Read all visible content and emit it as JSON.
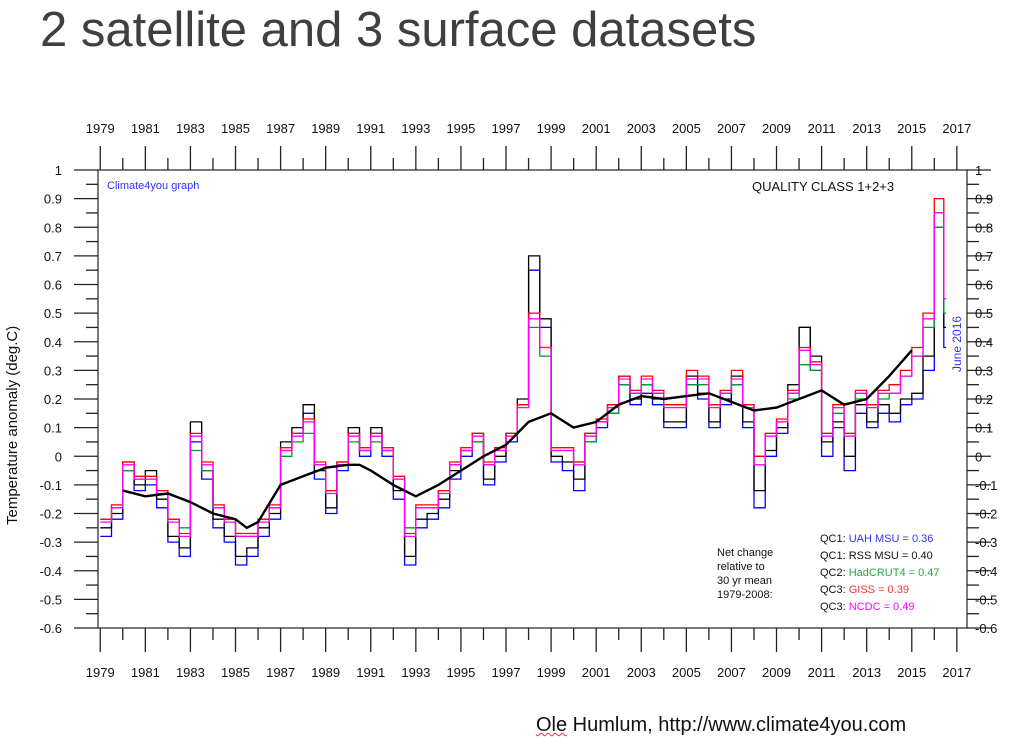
{
  "title": "2 satellite and 3 surface datasets",
  "footer": {
    "author": "Ole",
    "rest": " Humlum, http://www.climate4you.com"
  },
  "chart_data": {
    "type": "line",
    "ylabel": "Temperature anomaly (deg.C)",
    "watermark": "Climate4you graph",
    "panel_title": "QUALITY CLASS 1+2+3",
    "date_note": "June 2016",
    "xlim": [
      1978.9,
      2017.45
    ],
    "ylim": [
      -0.6,
      1.0
    ],
    "x_ticks": [
      1979,
      1981,
      1983,
      1985,
      1987,
      1989,
      1991,
      1993,
      1995,
      1997,
      1999,
      2001,
      2003,
      2005,
      2007,
      2009,
      2011,
      2013,
      2015,
      2017
    ],
    "y_ticks": [
      "-0.6",
      "-0.5",
      "-0.4",
      "-0.3",
      "-0.2",
      "-0.1",
      "0",
      "0.1",
      "0.2",
      "0.3",
      "0.4",
      "0.5",
      "0.6",
      "0.7",
      "0.8",
      "0.9",
      "1"
    ],
    "net_change_note": [
      "Net change",
      "relative to",
      "30 yr mean",
      "1979-2008:"
    ],
    "x": [
      1979,
      1979.5,
      1980,
      1980.5,
      1981,
      1981.5,
      1982,
      1982.5,
      1983,
      1983.5,
      1984,
      1984.5,
      1985,
      1985.5,
      1986,
      1986.5,
      1987,
      1987.5,
      1988,
      1988.5,
      1989,
      1989.5,
      1990,
      1990.5,
      1991,
      1991.5,
      1992,
      1992.5,
      1993,
      1993.5,
      1994,
      1994.5,
      1995,
      1995.5,
      1996,
      1996.5,
      1997,
      1997.5,
      1998,
      1998.5,
      1999,
      1999.5,
      2000,
      2000.5,
      2001,
      2001.5,
      2002,
      2002.5,
      2003,
      2003.5,
      2004,
      2004.5,
      2005,
      2005.5,
      2006,
      2006.5,
      2007,
      2007.5,
      2008,
      2008.5,
      2009,
      2009.5,
      2010,
      2010.5,
      2011,
      2011.5,
      2012,
      2012.5,
      2013,
      2013.5,
      2014,
      2014.5,
      2015,
      2015.5,
      2016,
      2016.42
    ],
    "series": [
      {
        "name": "UAH MSU",
        "class": "QC1",
        "net_change": "0.36",
        "color": "#0000ff",
        "values": [
          -0.28,
          -0.22,
          -0.05,
          -0.12,
          -0.1,
          -0.18,
          -0.3,
          -0.35,
          0.05,
          -0.08,
          -0.25,
          -0.3,
          -0.38,
          -0.35,
          -0.28,
          -0.22,
          0.02,
          0.08,
          0.15,
          -0.08,
          -0.2,
          -0.05,
          0.08,
          0.0,
          0.08,
          0.0,
          -0.15,
          -0.38,
          -0.25,
          -0.22,
          -0.18,
          -0.08,
          0.0,
          0.05,
          -0.1,
          -0.02,
          0.05,
          0.18,
          0.65,
          0.45,
          -0.02,
          -0.05,
          -0.12,
          0.05,
          0.1,
          0.15,
          0.25,
          0.18,
          0.22,
          0.18,
          0.1,
          0.1,
          0.25,
          0.2,
          0.1,
          0.18,
          0.25,
          0.1,
          -0.18,
          0.0,
          0.08,
          0.22,
          0.45,
          0.3,
          0.0,
          0.1,
          -0.05,
          0.15,
          0.1,
          0.15,
          0.12,
          0.18,
          0.2,
          0.3,
          0.8,
          0.38
        ]
      },
      {
        "name": "RSS MSU",
        "class": "QC1",
        "net_change": "0.40",
        "color": "#000000",
        "values": [
          -0.25,
          -0.2,
          -0.02,
          -0.1,
          -0.05,
          -0.15,
          -0.28,
          -0.32,
          0.12,
          -0.05,
          -0.22,
          -0.28,
          -0.35,
          -0.32,
          -0.25,
          -0.2,
          0.05,
          0.1,
          0.18,
          -0.05,
          -0.18,
          -0.02,
          0.1,
          0.02,
          0.1,
          0.02,
          -0.12,
          -0.35,
          -0.22,
          -0.2,
          -0.15,
          -0.05,
          0.02,
          0.08,
          -0.08,
          0.0,
          0.08,
          0.2,
          0.7,
          0.48,
          0.0,
          -0.02,
          -0.08,
          0.08,
          0.12,
          0.18,
          0.28,
          0.2,
          0.25,
          0.2,
          0.12,
          0.12,
          0.28,
          0.22,
          0.12,
          0.2,
          0.28,
          0.12,
          -0.12,
          0.02,
          0.1,
          0.25,
          0.45,
          0.35,
          0.05,
          0.12,
          0.0,
          0.18,
          0.12,
          0.18,
          0.15,
          0.2,
          0.22,
          0.35,
          0.85,
          0.45
        ]
      },
      {
        "name": "HadCRUT4",
        "class": "QC2",
        "net_change": "0.47",
        "color": "#009933",
        "values": [
          -0.22,
          -0.18,
          -0.05,
          -0.08,
          -0.08,
          -0.12,
          -0.22,
          -0.25,
          0.02,
          -0.05,
          -0.18,
          -0.22,
          -0.28,
          -0.28,
          -0.22,
          -0.18,
          0.0,
          0.05,
          0.08,
          -0.03,
          -0.12,
          -0.03,
          0.05,
          0.02,
          0.05,
          0.02,
          -0.08,
          -0.25,
          -0.18,
          -0.18,
          -0.12,
          -0.03,
          0.02,
          0.05,
          -0.03,
          0.02,
          0.08,
          0.18,
          0.45,
          0.35,
          0.02,
          0.02,
          -0.02,
          0.05,
          0.12,
          0.15,
          0.25,
          0.22,
          0.25,
          0.22,
          0.18,
          0.18,
          0.25,
          0.25,
          0.18,
          0.22,
          0.25,
          0.18,
          0.0,
          0.08,
          0.12,
          0.2,
          0.32,
          0.3,
          0.08,
          0.15,
          0.08,
          0.2,
          0.18,
          0.2,
          0.22,
          0.28,
          0.35,
          0.45,
          0.8,
          0.5
        ]
      },
      {
        "name": "GISS",
        "class": "QC3",
        "net_change": "0.39",
        "color": "#ff0000",
        "values": [
          -0.22,
          -0.17,
          -0.02,
          -0.07,
          -0.07,
          -0.12,
          -0.22,
          -0.27,
          0.08,
          -0.02,
          -0.17,
          -0.22,
          -0.27,
          -0.27,
          -0.22,
          -0.17,
          0.03,
          0.08,
          0.13,
          -0.02,
          -0.12,
          -0.02,
          0.08,
          0.03,
          0.08,
          0.03,
          -0.07,
          -0.27,
          -0.17,
          -0.17,
          -0.12,
          -0.02,
          0.03,
          0.08,
          -0.02,
          0.03,
          0.08,
          0.18,
          0.5,
          0.38,
          0.03,
          0.03,
          -0.02,
          0.08,
          0.13,
          0.18,
          0.28,
          0.23,
          0.28,
          0.23,
          0.18,
          0.18,
          0.3,
          0.28,
          0.18,
          0.23,
          0.3,
          0.18,
          0.0,
          0.08,
          0.13,
          0.23,
          0.38,
          0.33,
          0.08,
          0.18,
          0.08,
          0.23,
          0.18,
          0.23,
          0.25,
          0.3,
          0.38,
          0.5,
          0.9,
          0.55
        ]
      },
      {
        "name": "NCDC",
        "class": "QC3",
        "net_change": "0.49",
        "color": "#ff00ff",
        "values": [
          -0.23,
          -0.18,
          -0.03,
          -0.08,
          -0.08,
          -0.13,
          -0.23,
          -0.28,
          0.07,
          -0.03,
          -0.18,
          -0.23,
          -0.28,
          -0.28,
          -0.23,
          -0.18,
          0.02,
          0.07,
          0.12,
          -0.03,
          -0.13,
          -0.03,
          0.07,
          0.02,
          0.07,
          0.02,
          -0.08,
          -0.28,
          -0.18,
          -0.18,
          -0.13,
          -0.03,
          0.02,
          0.07,
          -0.03,
          0.02,
          0.07,
          0.17,
          0.48,
          0.38,
          0.02,
          0.02,
          -0.03,
          0.07,
          0.12,
          0.17,
          0.27,
          0.22,
          0.27,
          0.22,
          0.17,
          0.17,
          0.27,
          0.27,
          0.17,
          0.22,
          0.27,
          0.17,
          -0.03,
          0.07,
          0.12,
          0.22,
          0.37,
          0.32,
          0.07,
          0.17,
          0.07,
          0.22,
          0.17,
          0.22,
          0.22,
          0.28,
          0.35,
          0.48,
          0.85,
          0.55
        ]
      }
    ],
    "running_mean": {
      "x": [
        1980,
        1981,
        1982,
        1983,
        1984,
        1985,
        1985.5,
        1986,
        1987,
        1988,
        1989,
        1990,
        1990.5,
        1991,
        1992,
        1993,
        1994,
        1995,
        1996,
        1997,
        1998,
        1999,
        2000,
        2001,
        2002,
        2003,
        2004,
        2005,
        2006,
        2007,
        2008,
        2009,
        2010,
        2011,
        2012,
        2013,
        2014,
        2015
      ],
      "values": [
        -0.12,
        -0.14,
        -0.13,
        -0.16,
        -0.2,
        -0.22,
        -0.25,
        -0.23,
        -0.1,
        -0.07,
        -0.04,
        -0.03,
        -0.03,
        -0.05,
        -0.1,
        -0.14,
        -0.1,
        -0.05,
        0.0,
        0.04,
        0.12,
        0.15,
        0.1,
        0.12,
        0.18,
        0.21,
        0.2,
        0.21,
        0.22,
        0.19,
        0.16,
        0.17,
        0.2,
        0.23,
        0.18,
        0.2,
        0.28,
        0.37
      ],
      "color": "#000000"
    },
    "grid": false,
    "text_color_blue": "#3333ff"
  }
}
